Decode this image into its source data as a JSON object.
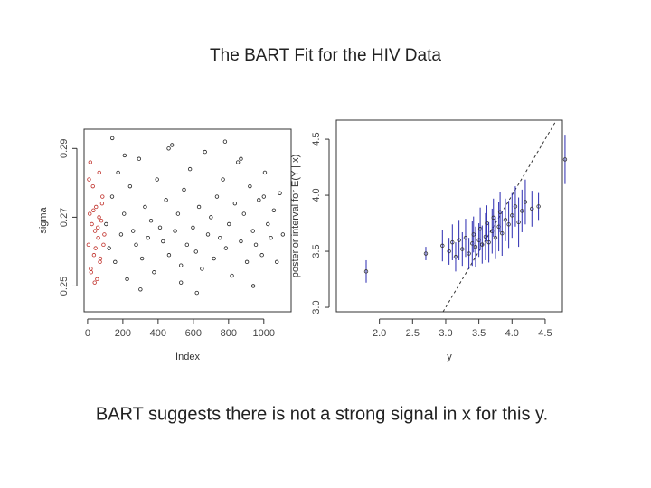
{
  "title": "The BART Fit for the HIV Data",
  "caption": "BART suggests there is not a strong signal in x for this y.",
  "chart_data": [
    {
      "type": "scatter",
      "xlabel": "Index",
      "ylabel": "sigma",
      "xlim": [
        -20,
        1155
      ],
      "ylim": [
        0.2425,
        0.2956
      ],
      "xticks": [
        0,
        200,
        400,
        600,
        800,
        1000
      ],
      "yticks": [
        0.25,
        0.27,
        0.29
      ],
      "series": [
        {
          "color": "#c0302a",
          "x": [
            5,
            12,
            18,
            24,
            30,
            36,
            42,
            48,
            54,
            60,
            66,
            72,
            78,
            84,
            90,
            8,
            20,
            33,
            45,
            58,
            70,
            82,
            95,
            15,
            40,
            65
          ],
          "values": [
            0.262,
            0.271,
            0.255,
            0.268,
            0.279,
            0.259,
            0.266,
            0.273,
            0.252,
            0.264,
            0.283,
            0.258,
            0.269,
            0.276,
            0.262,
            0.281,
            0.254,
            0.272,
            0.261,
            0.267,
            0.257,
            0.274,
            0.265,
            0.286,
            0.251,
            0.27
          ]
        },
        {
          "color": "#222222",
          "x": [
            105,
            122,
            139,
            156,
            173,
            190,
            207,
            224,
            241,
            258,
            275,
            292,
            309,
            326,
            343,
            360,
            377,
            394,
            411,
            428,
            445,
            462,
            479,
            496,
            513,
            530,
            547,
            564,
            581,
            598,
            615,
            632,
            649,
            666,
            683,
            700,
            717,
            734,
            751,
            768,
            785,
            802,
            819,
            836,
            853,
            870,
            887,
            904,
            921,
            938,
            955,
            972,
            989,
            1006,
            1023,
            1040,
            1057,
            1074,
            1091,
            1108,
            140,
            300,
            460,
            620,
            780,
            940,
            210,
            530,
            870,
            1000
          ],
          "values": [
            0.268,
            0.261,
            0.276,
            0.257,
            0.283,
            0.265,
            0.271,
            0.252,
            0.279,
            0.266,
            0.262,
            0.287,
            0.258,
            0.273,
            0.264,
            0.269,
            0.254,
            0.281,
            0.267,
            0.263,
            0.275,
            0.259,
            0.291,
            0.266,
            0.271,
            0.256,
            0.278,
            0.262,
            0.284,
            0.267,
            0.26,
            0.273,
            0.255,
            0.289,
            0.265,
            0.27,
            0.258,
            0.276,
            0.264,
            0.281,
            0.261,
            0.268,
            0.253,
            0.274,
            0.286,
            0.263,
            0.271,
            0.257,
            0.279,
            0.266,
            0.262,
            0.275,
            0.259,
            0.283,
            0.268,
            0.264,
            0.272,
            0.257,
            0.277,
            0.265,
            0.293,
            0.249,
            0.29,
            0.248,
            0.292,
            0.25,
            0.288,
            0.251,
            0.287,
            0.276
          ]
        }
      ]
    },
    {
      "type": "errorbar",
      "xlabel": "y",
      "ylabel": "posterior interval for E(Y | x)",
      "xlim": [
        1.35,
        4.76
      ],
      "ylim": [
        2.96,
        4.67
      ],
      "identity_line": true,
      "xticks": [
        {
          "value": 2,
          "label": "2.0"
        },
        2.5,
        {
          "value": 3,
          "label": "3.0"
        },
        3.5,
        {
          "value": 4,
          "label": "4.0"
        },
        4.5
      ],
      "yticks": [
        {
          "value": 3,
          "label": "3.0"
        },
        3.5,
        {
          "value": 4,
          "label": "4.0"
        },
        4.5
      ],
      "series": [
        {
          "color": "#2a2ab0",
          "x": [
            1.8,
            2.7,
            2.95,
            3.05,
            3.1,
            3.15,
            3.2,
            3.25,
            3.3,
            3.35,
            3.4,
            3.42,
            3.45,
            3.5,
            3.52,
            3.55,
            3.6,
            3.62,
            3.65,
            3.7,
            3.72,
            3.75,
            3.8,
            3.82,
            3.85,
            3.9,
            3.95,
            4.0,
            4.05,
            4.1,
            4.15,
            4.2,
            4.3,
            4.4,
            4.8
          ],
          "values": [
            3.32,
            3.48,
            3.55,
            3.5,
            3.58,
            3.45,
            3.6,
            3.52,
            3.62,
            3.48,
            3.57,
            3.65,
            3.54,
            3.6,
            3.7,
            3.56,
            3.63,
            3.75,
            3.58,
            3.68,
            3.8,
            3.62,
            3.72,
            3.85,
            3.66,
            3.78,
            3.74,
            3.82,
            3.9,
            3.76,
            3.86,
            3.94,
            3.88,
            3.9,
            4.32
          ],
          "errors": [
            0.1,
            0.06,
            0.14,
            0.12,
            0.16,
            0.13,
            0.18,
            0.15,
            0.17,
            0.14,
            0.2,
            0.16,
            0.18,
            0.15,
            0.19,
            0.17,
            0.21,
            0.16,
            0.18,
            0.2,
            0.17,
            0.19,
            0.22,
            0.18,
            0.2,
            0.19,
            0.21,
            0.2,
            0.18,
            0.22,
            0.19,
            0.2,
            0.16,
            0.12,
            0.22
          ]
        }
      ]
    }
  ]
}
